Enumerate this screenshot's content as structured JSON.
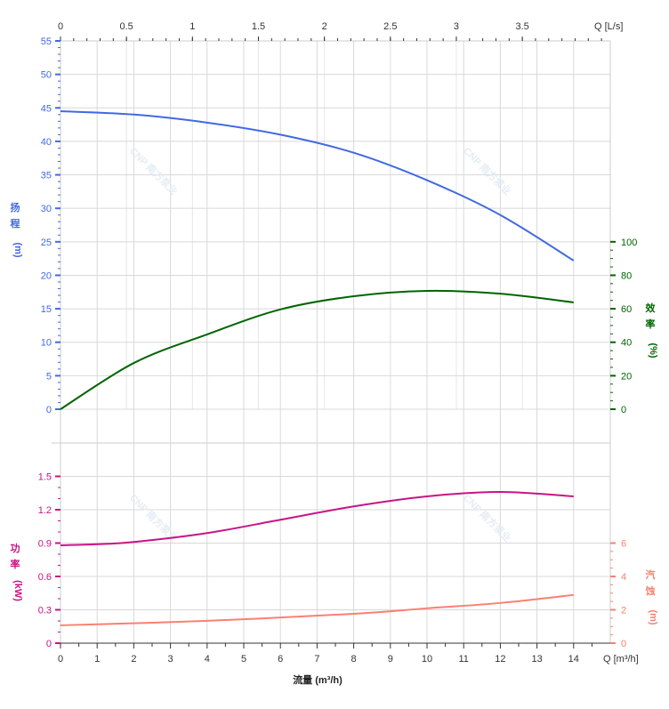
{
  "chart_data": {
    "type": "line",
    "x_label": "流量 (m³/h)",
    "x_unit_label": "Q [m³/h]",
    "x_top_unit_label": "Q [L/s]",
    "xlim": [
      0,
      15
    ],
    "x_ticks": [
      0,
      1,
      2,
      3,
      4,
      5,
      6,
      7,
      8,
      9,
      10,
      11,
      12,
      13,
      14
    ],
    "x_top_ticks": [
      0,
      0.5,
      1,
      1.5,
      2,
      2.5,
      3,
      3.5
    ],
    "grid": true,
    "watermark": "CNP 南方泵业",
    "upper_panel": {
      "left_axis": {
        "label": [
          "扬",
          "程",
          "(m)"
        ],
        "ylim": [
          0,
          55
        ],
        "ticks": [
          0,
          5,
          10,
          15,
          20,
          25,
          30,
          35,
          40,
          45,
          50,
          55
        ],
        "color": "#4169e1"
      },
      "right_axis": {
        "label": [
          "效",
          "率",
          "(%)"
        ],
        "ylim": [
          0,
          220
        ],
        "ticks": [
          0,
          20,
          40,
          60,
          80,
          100
        ],
        "color": "#006400"
      },
      "series": [
        {
          "name": "扬程",
          "axis": "left",
          "color": "#4169e1",
          "x": [
            0,
            2,
            4,
            6,
            8,
            10,
            12,
            14
          ],
          "y": [
            44.5,
            44,
            42.8,
            41,
            38.3,
            34.2,
            29,
            22.2
          ]
        },
        {
          "name": "效率",
          "axis": "right",
          "color": "#006400",
          "x": [
            0,
            2,
            4,
            6,
            8,
            10,
            12,
            14
          ],
          "y": [
            0,
            27.6,
            44.7,
            59.6,
            67.5,
            70.7,
            69,
            63.8
          ]
        }
      ]
    },
    "lower_panel": {
      "left_axis": {
        "label": [
          "功",
          "率",
          "(kW)"
        ],
        "ylim": [
          0,
          1.8
        ],
        "ticks": [
          0,
          0.3,
          0.6,
          0.9,
          1.2,
          1.5
        ],
        "color": "#c71585"
      },
      "right_axis": {
        "label": [
          "汽",
          "蚀",
          "(m)"
        ],
        "ylim": [
          0,
          12
        ],
        "ticks": [
          0,
          2,
          4,
          6
        ],
        "color": "#fa8072"
      },
      "series": [
        {
          "name": "功率",
          "axis": "left",
          "color": "#c71585",
          "x": [
            0,
            1,
            2,
            4,
            6,
            8,
            10,
            12,
            14
          ],
          "y": [
            0.88,
            0.89,
            0.91,
            0.99,
            1.11,
            1.23,
            1.32,
            1.36,
            1.32
          ]
        },
        {
          "name": "汽蚀",
          "axis": "right",
          "color": "#fa8072",
          "x": [
            0,
            4,
            8,
            10,
            12,
            14
          ],
          "y": [
            1.07,
            1.34,
            1.76,
            2.09,
            2.41,
            2.89
          ]
        }
      ]
    }
  }
}
